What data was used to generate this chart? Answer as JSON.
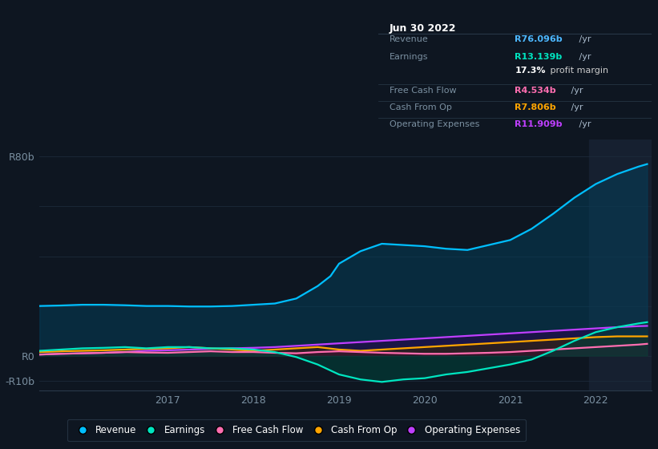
{
  "bg_color": "#0e1621",
  "plot_bg_color": "#0e1621",
  "grid_color": "#1c2a3a",
  "highlight_color": "#162030",
  "series": {
    "Revenue": {
      "color": "#00bfff",
      "fill_alpha": 0.5,
      "fill_color": "#04405c",
      "x": [
        2015.5,
        2015.75,
        2016.0,
        2016.25,
        2016.5,
        2016.75,
        2017.0,
        2017.25,
        2017.5,
        2017.75,
        2018.0,
        2018.25,
        2018.5,
        2018.75,
        2018.9,
        2019.0,
        2019.25,
        2019.5,
        2019.75,
        2020.0,
        2020.25,
        2020.5,
        2020.75,
        2021.0,
        2021.25,
        2021.5,
        2021.75,
        2022.0,
        2022.25,
        2022.5,
        2022.6
      ],
      "y": [
        20.0,
        20.2,
        20.5,
        20.5,
        20.3,
        20.0,
        20.0,
        19.8,
        19.8,
        20.0,
        20.5,
        21.0,
        23.0,
        28.0,
        32.0,
        37.0,
        42.0,
        45.0,
        44.5,
        44.0,
        43.0,
        42.5,
        44.5,
        46.5,
        51.0,
        57.0,
        63.5,
        69.0,
        73.0,
        76.0,
        77.0
      ]
    },
    "Earnings": {
      "color": "#00e5c0",
      "fill_alpha": 0.6,
      "fill_color": "#00403a",
      "x": [
        2015.5,
        2015.75,
        2016.0,
        2016.25,
        2016.5,
        2016.75,
        2017.0,
        2017.25,
        2017.5,
        2017.75,
        2018.0,
        2018.25,
        2018.5,
        2018.75,
        2019.0,
        2019.25,
        2019.5,
        2019.75,
        2020.0,
        2020.25,
        2020.5,
        2020.75,
        2021.0,
        2021.25,
        2021.5,
        2021.75,
        2022.0,
        2022.25,
        2022.5,
        2022.6
      ],
      "y": [
        2.0,
        2.5,
        3.0,
        3.2,
        3.5,
        3.0,
        3.5,
        3.5,
        3.0,
        3.0,
        2.5,
        1.5,
        -0.5,
        -3.5,
        -7.5,
        -9.5,
        -10.5,
        -9.5,
        -9.0,
        -7.5,
        -6.5,
        -5.0,
        -3.5,
        -1.5,
        2.0,
        6.0,
        9.5,
        11.5,
        13.0,
        13.5
      ]
    },
    "Free Cash Flow": {
      "color": "#ff6eb0",
      "fill_alpha": 0.5,
      "fill_color": "#3d1030",
      "x": [
        2015.5,
        2015.75,
        2016.0,
        2016.25,
        2016.5,
        2016.75,
        2017.0,
        2017.25,
        2017.5,
        2017.75,
        2018.0,
        2018.25,
        2018.5,
        2018.75,
        2019.0,
        2019.25,
        2019.5,
        2019.75,
        2020.0,
        2020.25,
        2020.5,
        2020.75,
        2021.0,
        2021.25,
        2021.5,
        2021.75,
        2022.0,
        2022.25,
        2022.5,
        2022.6
      ],
      "y": [
        0.5,
        0.8,
        1.0,
        1.2,
        1.5,
        1.3,
        1.2,
        1.5,
        1.8,
        1.5,
        1.5,
        1.2,
        1.0,
        1.5,
        1.8,
        1.5,
        1.2,
        1.0,
        0.8,
        0.8,
        1.0,
        1.2,
        1.5,
        2.0,
        2.5,
        3.0,
        3.5,
        4.0,
        4.5,
        4.8
      ]
    },
    "Cash From Op": {
      "color": "#ffa500",
      "fill_alpha": 0.5,
      "fill_color": "#3d2800",
      "x": [
        2015.5,
        2015.75,
        2016.0,
        2016.25,
        2016.5,
        2016.75,
        2017.0,
        2017.25,
        2017.5,
        2017.75,
        2018.0,
        2018.25,
        2018.5,
        2018.75,
        2019.0,
        2019.25,
        2019.5,
        2019.75,
        2020.0,
        2020.25,
        2020.5,
        2020.75,
        2021.0,
        2021.25,
        2021.5,
        2021.75,
        2022.0,
        2022.25,
        2022.5,
        2022.6
      ],
      "y": [
        1.5,
        1.8,
        2.0,
        2.2,
        2.5,
        2.8,
        3.0,
        3.5,
        3.0,
        2.5,
        2.0,
        2.5,
        3.0,
        3.5,
        2.5,
        2.0,
        2.5,
        3.0,
        3.5,
        4.0,
        4.5,
        5.0,
        5.5,
        6.0,
        6.5,
        7.0,
        7.5,
        7.8,
        7.8,
        7.8
      ]
    },
    "Operating Expenses": {
      "color": "#bf3fff",
      "fill_alpha": 0.5,
      "fill_color": "#2d0050",
      "x": [
        2015.5,
        2015.75,
        2016.0,
        2016.25,
        2016.5,
        2016.75,
        2017.0,
        2017.25,
        2017.5,
        2017.75,
        2018.0,
        2018.25,
        2018.5,
        2018.75,
        2019.0,
        2019.25,
        2019.5,
        2019.75,
        2020.0,
        2020.25,
        2020.5,
        2020.75,
        2021.0,
        2021.25,
        2021.5,
        2021.75,
        2022.0,
        2022.25,
        2022.5,
        2022.6
      ],
      "y": [
        0.5,
        0.8,
        1.0,
        1.2,
        1.5,
        2.0,
        2.2,
        2.5,
        2.8,
        3.0,
        3.2,
        3.5,
        4.0,
        4.5,
        5.0,
        5.5,
        6.0,
        6.5,
        7.0,
        7.5,
        8.0,
        8.5,
        9.0,
        9.5,
        10.0,
        10.5,
        11.0,
        11.5,
        11.9,
        12.0
      ]
    }
  },
  "ylim": [
    -14,
    87
  ],
  "y_axis_labels": [
    [
      "R80b",
      80
    ],
    [
      "R0",
      0
    ],
    [
      "-R10b",
      -10
    ]
  ],
  "xticks": [
    2017,
    2018,
    2019,
    2020,
    2021,
    2022
  ],
  "xlim": [
    2015.5,
    2022.65
  ],
  "highlight_start": 2021.92,
  "highlight_end": 2022.65,
  "info_box": {
    "title": "Jun 30 2022",
    "rows": [
      {
        "label": "Revenue",
        "value": "R76.096b",
        "suffix": " /yr",
        "value_color": "#4db8ff"
      },
      {
        "label": "Earnings",
        "value": "R13.139b",
        "suffix": " /yr",
        "value_color": "#00e5c0"
      },
      {
        "label": "",
        "bold": "17.3%",
        "rest": " profit margin",
        "value_color": "#ffffff"
      },
      {
        "label": "Free Cash Flow",
        "value": "R4.534b",
        "suffix": " /yr",
        "value_color": "#ff6eb0"
      },
      {
        "label": "Cash From Op",
        "value": "R7.806b",
        "suffix": " /yr",
        "value_color": "#ffa500"
      },
      {
        "label": "Operating Expenses",
        "value": "R11.909b",
        "suffix": " /yr",
        "value_color": "#bf3fff"
      }
    ]
  },
  "legend": [
    {
      "label": "Revenue",
      "color": "#00bfff"
    },
    {
      "label": "Earnings",
      "color": "#00e5c0"
    },
    {
      "label": "Free Cash Flow",
      "color": "#ff6eb0"
    },
    {
      "label": "Cash From Op",
      "color": "#ffa500"
    },
    {
      "label": "Operating Expenses",
      "color": "#bf3fff"
    }
  ]
}
